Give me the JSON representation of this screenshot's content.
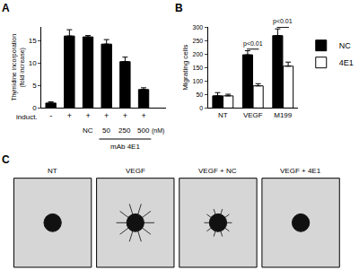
{
  "chart_data": [
    {
      "panel": "A",
      "type": "bar",
      "categories": [
        "-",
        "+",
        "+",
        "+",
        "+",
        "+"
      ],
      "row_label": "induct.",
      "sub_labels": [
        null,
        null,
        "NC",
        "50",
        "250",
        "500"
      ],
      "unit": "(nM)",
      "group_label": "mAb 4E1",
      "values": [
        1.1,
        16,
        15.8,
        14.2,
        10.3,
        4.1
      ],
      "errors": [
        0.3,
        1.4,
        0.3,
        1.0,
        1.0,
        0.4
      ],
      "color": "#000000",
      "y_label": [
        "Thymidine incorporation",
        "(fold increase)"
      ],
      "ylim": [
        0,
        18
      ],
      "yticks": [
        0,
        5,
        10,
        15
      ],
      "grid": false
    },
    {
      "panel": "B",
      "type": "bar",
      "categories": [
        "NT",
        "VEGF",
        "M199"
      ],
      "series": [
        {
          "name": "NC",
          "color": "#000000",
          "values": [
            45,
            197,
            268
          ],
          "errors": [
            12,
            15,
            25
          ]
        },
        {
          "name": "4E1",
          "color": "#ffffff",
          "values": [
            45,
            82,
            155
          ],
          "errors": [
            6,
            8,
            15
          ]
        }
      ],
      "y_label": "Migrating cells",
      "ylim": [
        0,
        300
      ],
      "yticks": [
        0,
        50,
        100,
        150,
        200,
        250,
        300
      ],
      "legend": "right",
      "annotations": [
        {
          "category": "VEGF",
          "text": "p<0.01"
        },
        {
          "category": "M199",
          "text": "p<0.01"
        }
      ],
      "grid": false
    }
  ],
  "panel_c": {
    "panel": "C",
    "images": [
      "NT",
      "VEGF",
      "VEGF + NC",
      "VEGF + 4E1"
    ]
  }
}
